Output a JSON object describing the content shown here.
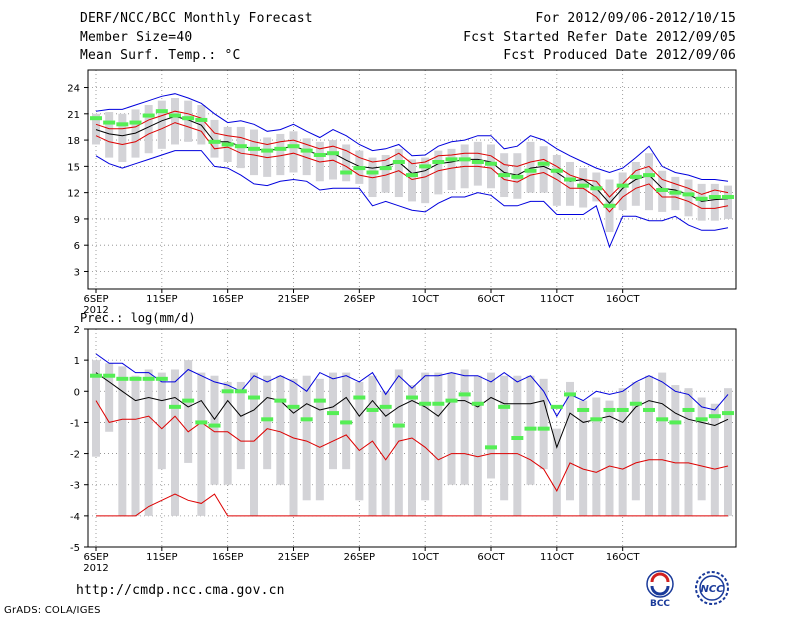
{
  "header": {
    "title": "DERF/NCC/BCC Monthly Forecast",
    "member_size": "Member Size=40",
    "variable": "Mean Surf. Temp.: °C",
    "period": "For 2012/09/06-2012/10/15",
    "started": "Fcst Started Refer Date 2012/09/05",
    "produced": "Fcst Produced Date 2012/09/06"
  },
  "footer": {
    "url": "http://cmdp.ncc.cma.gov.cn",
    "credit": "GrADS: COLA/IGES",
    "logo_bcc": "BCC",
    "logo_ncc": "NCC"
  },
  "colors": {
    "box": "#d3d3d7",
    "bar": "#55ee55",
    "max": "#0000dd",
    "ens_mean": "#000000",
    "band": "#dd0000",
    "grid": "#888888"
  },
  "chart_data": [
    {
      "type": "box",
      "title": "",
      "ylabel": "°C",
      "ylim": [
        1,
        26
      ],
      "yticks": [
        3,
        6,
        9,
        12,
        15,
        18,
        21,
        24
      ],
      "x_tick_labels": [
        "6SEP",
        "11SEP",
        "16SEP",
        "21SEP",
        "26SEP",
        "1OCT",
        "6OCT",
        "11OCT",
        "16OCT"
      ],
      "x_tick_days": [
        0,
        5,
        10,
        15,
        20,
        25,
        30,
        35,
        40
      ],
      "x_year_label": "2012",
      "grid": true,
      "series": [
        {
          "name": "max",
          "values": [
            21.3,
            21.5,
            21.5,
            22.0,
            22.5,
            23.0,
            23.3,
            22.8,
            22.2,
            21.0,
            20.0,
            20.2,
            19.8,
            19.0,
            19.2,
            19.8,
            19.0,
            18.3,
            19.2,
            18.5,
            17.5,
            16.8,
            17.0,
            17.5,
            16.2,
            16.3,
            17.3,
            17.8,
            18.0,
            18.5,
            18.5,
            17.0,
            17.3,
            18.5,
            18.0,
            17.0,
            16.2,
            15.5,
            14.8,
            14.3,
            14.8,
            16.0,
            17.3,
            15.0,
            14.3,
            14.0,
            13.5,
            13.5,
            13.3
          ]
        },
        {
          "name": "upper",
          "values": [
            19.8,
            19.3,
            19.3,
            19.5,
            20.3,
            20.8,
            21.3,
            21.0,
            20.5,
            18.8,
            18.5,
            18.3,
            17.8,
            17.5,
            17.8,
            18.0,
            17.5,
            17.0,
            17.3,
            16.8,
            16.0,
            15.5,
            15.7,
            16.5,
            15.3,
            15.5,
            16.2,
            16.3,
            16.5,
            16.5,
            16.2,
            15.2,
            15.0,
            15.5,
            15.8,
            15.0,
            14.0,
            13.5,
            13.3,
            11.5,
            13.0,
            14.5,
            15.0,
            13.5,
            13.0,
            12.5,
            11.8,
            12.3,
            12.0
          ]
        },
        {
          "name": "ens_mean",
          "values": [
            19.2,
            18.7,
            18.5,
            18.8,
            19.5,
            20.2,
            20.7,
            20.3,
            19.7,
            17.8,
            17.8,
            17.3,
            17.0,
            16.8,
            17.0,
            17.3,
            16.8,
            16.3,
            16.5,
            15.7,
            15.0,
            14.8,
            15.0,
            15.5,
            14.2,
            14.5,
            15.3,
            15.5,
            15.8,
            15.8,
            15.5,
            14.3,
            14.0,
            14.8,
            15.0,
            14.3,
            13.3,
            13.5,
            12.5,
            10.8,
            12.5,
            13.5,
            14.0,
            12.5,
            12.3,
            11.8,
            11.0,
            11.2,
            11.3
          ]
        },
        {
          "name": "lower",
          "values": [
            18.5,
            17.8,
            17.5,
            17.8,
            18.7,
            19.3,
            20.0,
            19.5,
            19.0,
            17.0,
            17.2,
            16.5,
            16.3,
            16.0,
            16.2,
            16.5,
            16.0,
            15.5,
            15.7,
            15.0,
            14.0,
            13.7,
            14.0,
            14.5,
            13.5,
            13.8,
            14.5,
            14.8,
            15.0,
            15.0,
            14.8,
            13.5,
            13.2,
            14.0,
            14.3,
            13.5,
            12.5,
            12.5,
            11.5,
            9.8,
            11.5,
            12.5,
            13.0,
            11.5,
            11.5,
            11.0,
            10.2,
            10.2,
            10.5
          ]
        },
        {
          "name": "min",
          "values": [
            16.2,
            15.3,
            14.8,
            15.3,
            15.8,
            16.3,
            16.8,
            16.8,
            16.8,
            15.0,
            14.8,
            14.0,
            13.0,
            12.8,
            13.3,
            13.5,
            13.3,
            12.3,
            12.5,
            12.5,
            12.5,
            10.5,
            11.0,
            10.5,
            10.0,
            9.8,
            10.8,
            11.5,
            11.5,
            12.0,
            11.7,
            10.5,
            10.5,
            11.0,
            11.0,
            9.5,
            9.5,
            9.5,
            10.5,
            5.8,
            9.3,
            9.3,
            8.8,
            8.8,
            9.3,
            8.3,
            7.7,
            7.7,
            8.0
          ]
        },
        {
          "name": "box_high",
          "values": [
            21.0,
            21.2,
            21.0,
            21.5,
            22.0,
            22.5,
            22.8,
            22.5,
            22.0,
            20.3,
            19.5,
            19.5,
            19.2,
            18.3,
            18.7,
            19.0,
            18.2,
            17.8,
            18.0,
            17.5,
            16.8,
            16.0,
            16.3,
            17.0,
            15.8,
            16.0,
            16.8,
            17.0,
            17.5,
            17.8,
            17.5,
            16.5,
            16.5,
            17.8,
            17.3,
            16.3,
            15.5,
            14.8,
            14.3,
            13.5,
            14.3,
            15.5,
            16.5,
            14.5,
            13.8,
            13.5,
            13.0,
            13.0,
            12.8
          ]
        },
        {
          "name": "box_low",
          "values": [
            17.5,
            16.0,
            15.5,
            16.0,
            16.5,
            17.0,
            17.5,
            17.8,
            17.5,
            16.0,
            15.5,
            14.8,
            14.0,
            13.8,
            14.0,
            14.3,
            14.0,
            13.3,
            13.5,
            13.3,
            13.0,
            11.5,
            12.0,
            11.5,
            11.0,
            10.8,
            11.8,
            12.3,
            12.5,
            12.8,
            12.5,
            11.5,
            11.3,
            12.0,
            12.0,
            10.5,
            10.5,
            10.3,
            11.0,
            7.5,
            10.0,
            10.5,
            10.0,
            9.8,
            10.0,
            9.3,
            8.8,
            8.8,
            9.0
          ]
        },
        {
          "name": "green_bar",
          "values": [
            20.5,
            20.0,
            19.8,
            20.0,
            20.8,
            21.3,
            20.8,
            20.5,
            20.3,
            17.8,
            17.5,
            17.3,
            17.0,
            16.8,
            17.0,
            17.3,
            16.8,
            16.3,
            16.5,
            14.3,
            14.8,
            14.3,
            14.8,
            15.5,
            14.0,
            15.0,
            15.5,
            15.8,
            15.8,
            15.5,
            15.3,
            14.0,
            13.8,
            14.5,
            15.3,
            14.5,
            13.5,
            12.8,
            12.5,
            10.5,
            12.8,
            13.8,
            14.0,
            12.3,
            12.0,
            11.8,
            11.3,
            11.5,
            11.5
          ]
        }
      ]
    },
    {
      "type": "box",
      "title": "Prec.: log(mm/d)",
      "ylabel": "log(mm/d)",
      "ylim": [
        -5,
        2
      ],
      "yticks": [
        -5,
        -4,
        -3,
        -2,
        -1,
        0,
        1,
        2
      ],
      "x_tick_labels": [
        "6SEP",
        "11SEP",
        "16SEP",
        "21SEP",
        "26SEP",
        "1OCT",
        "6OCT",
        "11OCT",
        "16OCT"
      ],
      "x_tick_days": [
        0,
        5,
        10,
        15,
        20,
        25,
        30,
        35,
        40
      ],
      "x_year_label": "2012",
      "grid": true,
      "series": [
        {
          "name": "max",
          "values": [
            1.2,
            0.9,
            0.9,
            0.6,
            0.6,
            0.3,
            0.3,
            0.7,
            0.5,
            0.3,
            0.2,
            0.0,
            0.5,
            0.3,
            0.5,
            0.3,
            0.0,
            0.6,
            0.4,
            0.5,
            0.3,
            0.6,
            -0.1,
            0.5,
            0.1,
            0.5,
            0.5,
            0.6,
            0.5,
            0.5,
            0.3,
            0.6,
            0.3,
            0.5,
            0.0,
            -0.8,
            -0.1,
            -0.3,
            0.0,
            -0.1,
            0.0,
            0.3,
            0.5,
            0.3,
            0.0,
            -0.1,
            -0.5,
            -0.6,
            -0.1
          ]
        },
        {
          "name": "ens_mean",
          "values": [
            0.6,
            0.3,
            0.0,
            -0.3,
            -0.2,
            -0.3,
            -0.2,
            -0.5,
            -0.3,
            -0.9,
            -0.3,
            -0.8,
            -0.6,
            -0.2,
            -0.3,
            -0.7,
            -0.4,
            -0.6,
            -0.5,
            -0.2,
            -0.8,
            -0.3,
            -0.8,
            -0.5,
            -0.3,
            -0.5,
            -0.8,
            -0.3,
            -0.3,
            -0.5,
            -0.2,
            -0.4,
            -0.4,
            -0.4,
            -0.3,
            -1.8,
            -0.7,
            -1.0,
            -0.9,
            -0.8,
            -1.0,
            -0.5,
            -0.3,
            -0.4,
            -0.7,
            -0.9,
            -1.0,
            -1.1,
            -0.9
          ]
        },
        {
          "name": "lower",
          "values": [
            -0.3,
            -1.0,
            -0.9,
            -0.9,
            -0.8,
            -1.2,
            -0.8,
            -1.3,
            -1.0,
            -1.3,
            -1.3,
            -1.6,
            -1.6,
            -1.2,
            -1.3,
            -1.5,
            -1.6,
            -1.8,
            -1.6,
            -1.4,
            -1.9,
            -1.6,
            -2.2,
            -1.6,
            -1.5,
            -1.8,
            -2.2,
            -2.0,
            -2.0,
            -2.1,
            -2.0,
            -2.0,
            -2.0,
            -2.2,
            -2.5,
            -3.2,
            -2.3,
            -2.5,
            -2.6,
            -2.4,
            -2.5,
            -2.3,
            -2.2,
            -2.2,
            -2.3,
            -2.3,
            -2.4,
            -2.5,
            -2.4
          ]
        },
        {
          "name": "min_band",
          "values": [
            -4.0,
            -4.0,
            -4.0,
            -4.0,
            -3.7,
            -3.5,
            -3.3,
            -3.5,
            -3.6,
            -3.3,
            -4.0,
            -4.0,
            -4.0,
            -4.0,
            -4.0,
            -4.0,
            -4.0,
            -4.0,
            -4.0,
            -4.0,
            -4.0,
            -4.0,
            -4.0,
            -4.0,
            -4.0,
            -4.0,
            -4.0,
            -4.0,
            -4.0,
            -4.0,
            -4.0,
            -4.0,
            -4.0,
            -4.0,
            -4.0,
            -4.0,
            -4.0,
            -4.0,
            -4.0,
            -4.0,
            -4.0,
            -4.0,
            -4.0,
            -4.0,
            -4.0,
            -4.0,
            -4.0,
            -4.0,
            -4.0
          ]
        },
        {
          "name": "box_high",
          "values": [
            1.0,
            0.9,
            0.8,
            0.5,
            0.7,
            0.6,
            0.7,
            1.0,
            0.6,
            0.5,
            0.3,
            0.3,
            0.6,
            0.5,
            0.5,
            0.4,
            0.5,
            0.4,
            0.6,
            0.6,
            0.3,
            0.5,
            0.0,
            0.7,
            0.2,
            0.6,
            0.6,
            0.6,
            0.7,
            0.5,
            0.6,
            0.5,
            0.5,
            0.5,
            0.4,
            -1.2,
            0.3,
            -0.3,
            -0.2,
            -0.3,
            0.1,
            0.3,
            0.5,
            0.6,
            0.2,
            0.1,
            -0.2,
            -0.4,
            0.1
          ]
        },
        {
          "name": "box_low",
          "values": [
            -2.1,
            -1.3,
            -4.0,
            -4.0,
            -4.0,
            -2.5,
            -4.0,
            -2.3,
            -4.0,
            -3.0,
            -3.0,
            -2.5,
            -4.0,
            -2.5,
            -3.0,
            -4.0,
            -3.5,
            -3.5,
            -2.5,
            -2.5,
            -3.5,
            -4.0,
            -4.0,
            -4.0,
            -4.0,
            -3.5,
            -4.0,
            -3.0,
            -3.0,
            -4.0,
            -2.8,
            -3.5,
            -4.0,
            -3.0,
            -2.5,
            -4.0,
            -3.5,
            -4.0,
            -4.0,
            -4.0,
            -4.0,
            -3.5,
            -4.0,
            -4.0,
            -4.0,
            -4.0,
            -3.5,
            -4.0,
            -4.0
          ]
        },
        {
          "name": "green_bar",
          "values": [
            0.5,
            0.5,
            0.4,
            0.4,
            0.4,
            0.4,
            -0.5,
            -0.3,
            -1.0,
            -1.1,
            0.0,
            0.0,
            -0.2,
            -0.9,
            -0.3,
            -0.5,
            -0.9,
            -0.3,
            -0.7,
            -1.0,
            -0.2,
            -0.6,
            -0.5,
            -1.1,
            -0.2,
            -0.4,
            -0.4,
            -0.3,
            -0.1,
            -0.4,
            -1.8,
            -0.5,
            -1.5,
            -1.2,
            -1.2,
            -0.5,
            -0.1,
            -0.6,
            -0.9,
            -0.6,
            -0.6,
            -0.4,
            -0.6,
            -0.9,
            -1.0,
            -0.6,
            -0.9,
            -0.8,
            -0.7
          ]
        }
      ]
    }
  ]
}
